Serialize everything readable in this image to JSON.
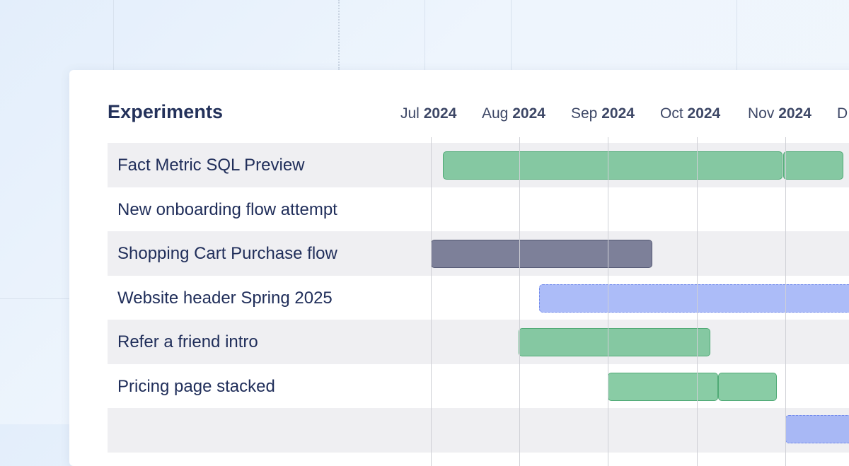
{
  "card": {
    "title": "Experiments"
  },
  "timeline": {
    "months": [
      {
        "m": "Jul",
        "y": "2024"
      },
      {
        "m": "Aug",
        "y": "2024"
      },
      {
        "m": "Sep",
        "y": "2024"
      },
      {
        "m": "Oct",
        "y": "2024"
      },
      {
        "m": "Nov",
        "y": "2024"
      },
      {
        "m": "D",
        "y": ""
      }
    ]
  },
  "experiments": [
    {
      "name": "Fact Metric SQL Preview",
      "status": "green"
    },
    {
      "name": "New onboarding flow attempt",
      "status": "none"
    },
    {
      "name": "Shopping Cart Purchase flow",
      "status": "dark"
    },
    {
      "name": "Website header Spring 2025",
      "status": "blue"
    },
    {
      "name": "Refer a friend intro",
      "status": "green"
    },
    {
      "name": "Pricing page stacked",
      "status": "green"
    },
    {
      "name": "",
      "status": "blue"
    }
  ],
  "colors": {
    "running": "#5cb882",
    "stopped": "#606482",
    "draft": "#8ca2f5",
    "title": "#23315a"
  }
}
